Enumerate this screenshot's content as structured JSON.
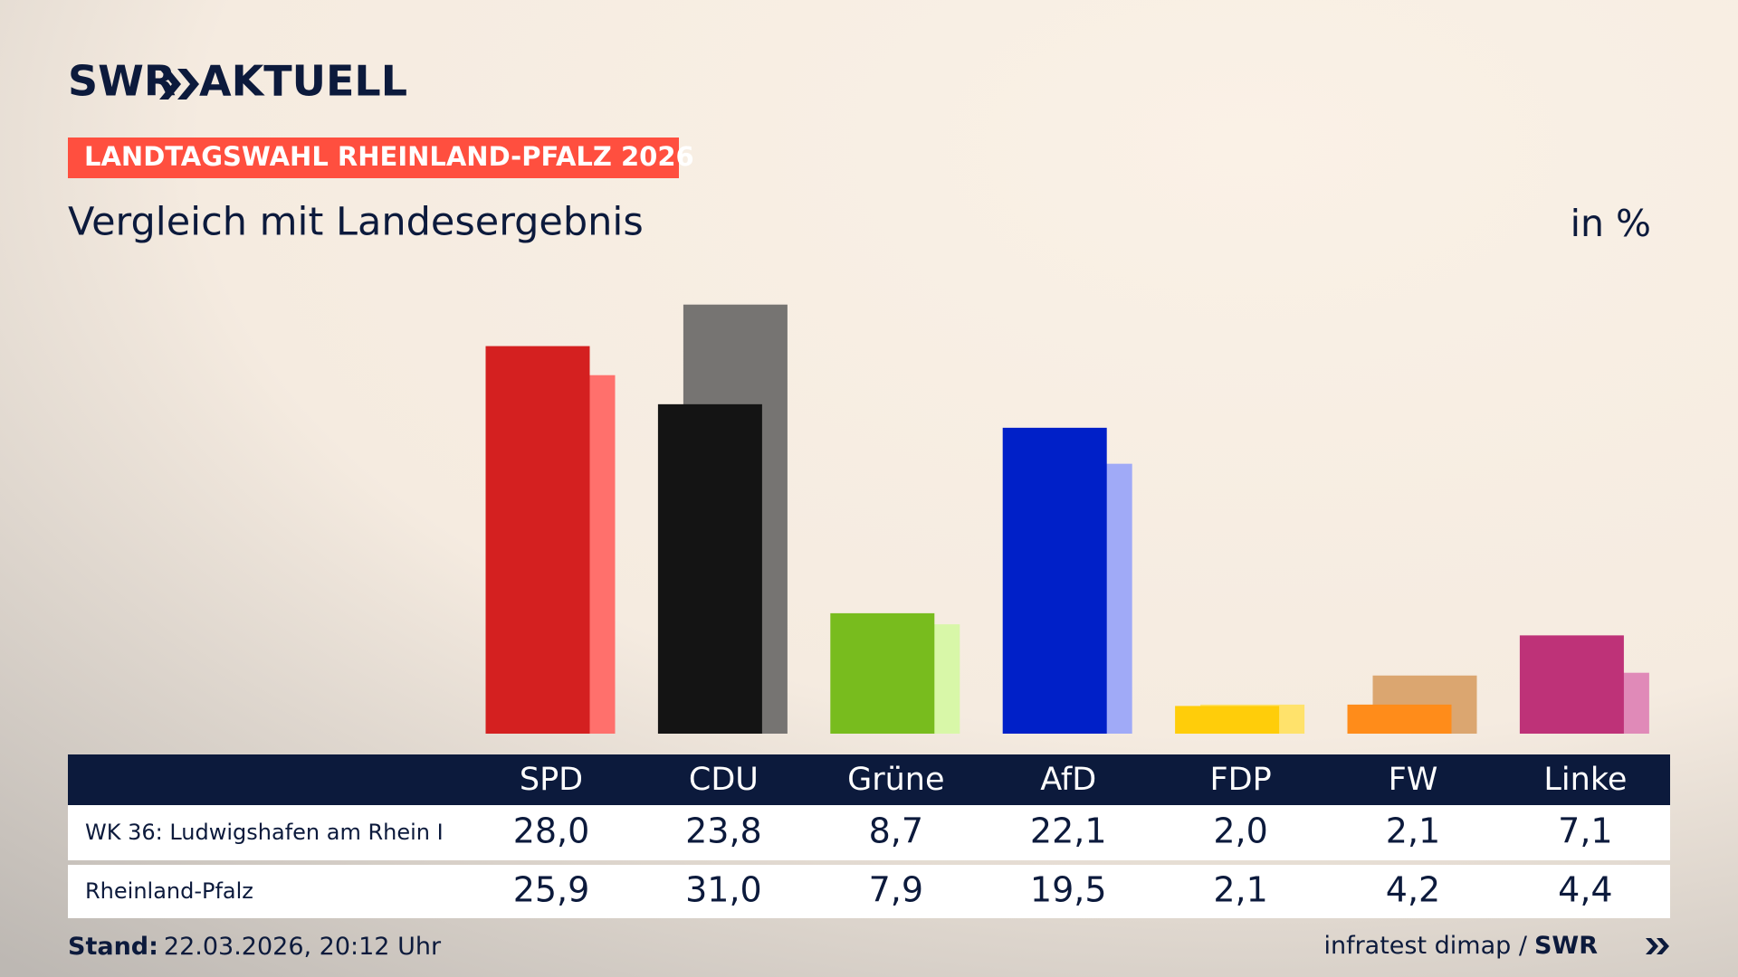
{
  "header": {
    "logo": "SWR",
    "brand": "AKTUELL",
    "badge": "LANDTAGSWAHL RHEINLAND-PFALZ 2026"
  },
  "chart_data": {
    "type": "bar",
    "title": "Vergleich mit Landesergebnis",
    "unit": "in %",
    "categories": [
      "SPD",
      "CDU",
      "Grüne",
      "AfD",
      "FDP",
      "FW",
      "Linke"
    ],
    "series": [
      {
        "name": "WK 36: Ludwigshafen am Rhein I",
        "colors": [
          "#d42020",
          "#141414",
          "#78bc1e",
          "#0020c8",
          "#ffcd0a",
          "#ff8c1a",
          "#be3278"
        ],
        "values": [
          28.0,
          23.8,
          8.7,
          22.1,
          2.0,
          2.1,
          7.1
        ],
        "value_labels": [
          "28,0",
          "23,8",
          "8,7",
          "22,1",
          "2,0",
          "2,1",
          "7,1"
        ]
      },
      {
        "name": "Rheinland-Pfalz",
        "colors": [
          "#ff706c",
          "#767472",
          "#d8f7a8",
          "#a0aaf7",
          "#ffe26b",
          "#dba670",
          "#e08ab8"
        ],
        "values": [
          25.9,
          31.0,
          7.9,
          19.5,
          2.1,
          4.2,
          4.4
        ],
        "value_labels": [
          "25,9",
          "31,0",
          "7,9",
          "19,5",
          "2,1",
          "4,2",
          "4,4"
        ]
      }
    ]
  },
  "footer": {
    "stand_label": "Stand:",
    "stand_value": "22.03.2026, 20:12 Uhr",
    "source": "infratest dimap /",
    "source_logo": "SWR"
  }
}
